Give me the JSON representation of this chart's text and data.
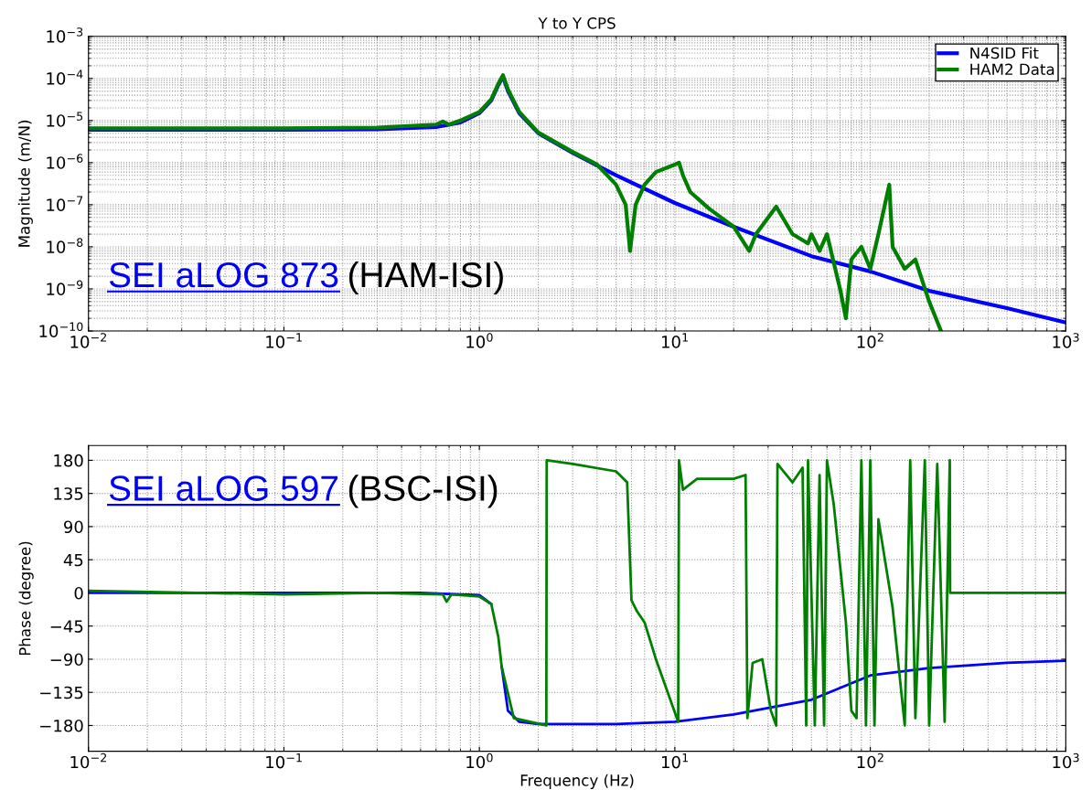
{
  "chart_data": [
    {
      "type": "line",
      "title": "Y to Y CPS",
      "ylabel": "Magnitude (m/N)",
      "log": "xy",
      "grid": true,
      "legend": "top right",
      "xlim": [
        0.01,
        1000
      ],
      "xticks": [
        {
          "value": 0.01,
          "label": "10$^{−2}$"
        },
        {
          "value": 0.1,
          "label": "10$^{−1}$"
        },
        {
          "value": 1,
          "label": "10$^{0}$"
        },
        {
          "value": 10,
          "label": "10$^{1}$"
        },
        {
          "value": 100,
          "label": "10$^{2}$"
        },
        {
          "value": 1000,
          "label": "10$^{3}$"
        }
      ],
      "ylim": [
        1e-10,
        0.001
      ],
      "yticks": [
        {
          "value": 1e-10,
          "label": "10$^{−10}$"
        },
        {
          "value": 1e-09,
          "label": "10$^{−9}$"
        },
        {
          "value": 1e-08,
          "label": "10$^{−8}$"
        },
        {
          "value": 1e-07,
          "label": "10$^{−7}$"
        },
        {
          "value": 1e-06,
          "label": "10$^{−6}$"
        },
        {
          "value": 1e-05,
          "label": "10$^{−5}$"
        },
        {
          "value": 0.0001,
          "label": "10$^{−4}$"
        },
        {
          "value": 0.001,
          "label": "10$^{−3}$"
        }
      ],
      "annotations": [
        "SEI aLOG 873",
        "(HAM-ISI)"
      ],
      "series": [
        {
          "name": "N4SID Fit",
          "color": "#0000ff",
          "x": [
            0.01,
            0.1,
            0.3,
            0.6,
            0.8,
            1.0,
            1.15,
            1.25,
            1.32,
            1.4,
            1.6,
            2,
            3,
            5,
            10,
            20,
            50,
            100,
            200,
            500,
            1000
          ],
          "values": [
            6e-06,
            6e-06,
            6.2e-06,
            7e-06,
            9e-06,
            1.5e-05,
            3e-05,
            7e-05,
            0.00011,
            5e-05,
            1.5e-05,
            5e-06,
            1.7e-06,
            5e-07,
            1.1e-07,
            3e-08,
            6e-09,
            2.6e-09,
            9e-10,
            3.5e-10,
            1.6e-10
          ]
        },
        {
          "name": "HAM2 Data",
          "color": "#007f00",
          "x": [
            0.01,
            0.1,
            0.3,
            0.6,
            0.65,
            0.7,
            0.8,
            1.0,
            1.15,
            1.25,
            1.32,
            1.4,
            1.6,
            2,
            3,
            4,
            5,
            5.6,
            5.9,
            6.3,
            7,
            8,
            10,
            10.5,
            11,
            12,
            15,
            20,
            24,
            26,
            33,
            40,
            48,
            50,
            55,
            60,
            70,
            75,
            80,
            90,
            100,
            110,
            125,
            130,
            150,
            170,
            200,
            230
          ],
          "values": [
            6.5e-06,
            6.5e-06,
            6.8e-06,
            8e-06,
            9.5e-06,
            8e-06,
            1e-05,
            1.6e-05,
            3.2e-05,
            7.5e-05,
            0.00012,
            5.5e-05,
            1.6e-05,
            5.2e-06,
            1.8e-06,
            9e-07,
            3e-07,
            1e-07,
            8e-09,
            1e-07,
            3e-07,
            6e-07,
            9e-07,
            1e-06,
            5e-07,
            2e-07,
            8e-08,
            3e-08,
            8e-09,
            2e-08,
            9e-08,
            2e-08,
            1.2e-08,
            2e-08,
            8e-09,
            2e-08,
            1e-09,
            2e-10,
            5e-09,
            1e-08,
            3e-09,
            2e-08,
            3e-07,
            1e-08,
            3e-09,
            5e-09,
            5e-10,
            1e-10
          ]
        }
      ]
    },
    {
      "type": "line",
      "xlabel": "Frequency (Hz)",
      "ylabel": "Phase (degree)",
      "log": "x",
      "grid": true,
      "xlim": [
        0.01,
        1000
      ],
      "xticks": [
        {
          "value": 0.01,
          "label": "10$^{−2}$"
        },
        {
          "value": 0.1,
          "label": "10$^{−1}$"
        },
        {
          "value": 1,
          "label": "10$^{0}$"
        },
        {
          "value": 10,
          "label": "10$^{1}$"
        },
        {
          "value": 100,
          "label": "10$^{2}$"
        },
        {
          "value": 1000,
          "label": "10$^{3}$"
        }
      ],
      "ylim": [
        -215,
        200
      ],
      "yticks": [
        180,
        135,
        90,
        45,
        0,
        {
          "value": -45,
          "label": "−45"
        },
        {
          "value": -90,
          "label": "−90"
        },
        {
          "value": -135,
          "label": "−135"
        },
        {
          "value": -180,
          "label": "−180"
        }
      ],
      "annotations": [
        "SEI aLOG 597",
        "(BSC-ISI)"
      ],
      "series": [
        {
          "color": "#0000ff",
          "x": [
            0.01,
            0.1,
            0.5,
            1.0,
            1.15,
            1.25,
            1.3,
            1.4,
            1.6,
            2,
            5,
            10,
            20,
            50,
            100,
            200,
            500,
            1000
          ],
          "values": [
            0,
            0,
            0,
            -3,
            -15,
            null,
            -100,
            -160,
            -175,
            -178,
            -178,
            -175,
            -165,
            -145,
            -112,
            -102,
            -95,
            -92
          ]
        },
        {
          "color": "#007f00",
          "x": [
            0.01,
            0.1,
            0.3,
            0.65,
            0.68,
            0.72,
            1.0,
            1.15,
            1.25,
            1.3,
            1.5,
            2.2,
            2.21,
            3,
            5,
            5.7,
            6.0,
            6.4,
            7,
            8,
            10.4,
            10.5,
            11,
            13,
            20,
            23,
            23.5,
            25,
            28,
            31,
            33,
            33.5,
            40,
            45,
            47,
            48,
            52,
            55,
            58,
            60,
            65,
            75,
            80,
            85,
            90,
            95,
            100,
            105,
            110,
            130,
            150,
            160,
            170,
            190,
            200,
            220,
            240,
            255,
            256,
            1000
          ],
          "values": [
            3,
            -2,
            0,
            -2,
            -12,
            -2,
            -5,
            -15,
            -60,
            -100,
            -170,
            -180,
            180,
            175,
            165,
            150,
            -10,
            -25,
            -40,
            -90,
            -175,
            180,
            140,
            155,
            155,
            160,
            -170,
            -95,
            -90,
            -160,
            -180,
            175,
            150,
            170,
            -180,
            180,
            -180,
            160,
            -180,
            180,
            120,
            -40,
            -160,
            -170,
            180,
            -180,
            180,
            -180,
            100,
            -20,
            -180,
            180,
            -170,
            180,
            -180,
            175,
            -175,
            180,
            0,
            0
          ]
        }
      ]
    }
  ]
}
